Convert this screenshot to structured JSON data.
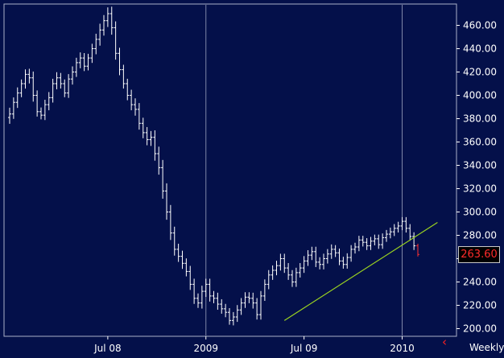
{
  "chart_data": {
    "type": "ohlc",
    "title": "",
    "xlabel": "",
    "ylabel": "",
    "timeframe": "Weekly",
    "last_price_label": "263.60",
    "ylim": [
      195,
      478
    ],
    "yticks": [
      "200.00",
      "220.00",
      "240.00",
      "260.00",
      "280.00",
      "300.00",
      "320.00",
      "340.00",
      "360.00",
      "380.00",
      "400.00",
      "420.00",
      "440.00",
      "460.00"
    ],
    "xticks": [
      {
        "label": "Jul 08",
        "index": 25
      },
      {
        "label": "2009",
        "index": 50
      },
      {
        "label": "Jul 09",
        "index": 75
      },
      {
        "label": "2010",
        "index": 100
      }
    ],
    "year_separators": [
      50,
      100
    ],
    "close": [
      384,
      394,
      402,
      410,
      418,
      415,
      400,
      386,
      383,
      392,
      398,
      410,
      415,
      410,
      402,
      414,
      420,
      428,
      432,
      425,
      432,
      440,
      448,
      456,
      464,
      470,
      458,
      436,
      422,
      410,
      400,
      392,
      388,
      376,
      368,
      362,
      364,
      350,
      338,
      318,
      300,
      282,
      268,
      262,
      256,
      249,
      238,
      226,
      222,
      232,
      238,
      228,
      226,
      221,
      217,
      214,
      207,
      210,
      216,
      222,
      227,
      226,
      222,
      212,
      228,
      238,
      246,
      250,
      254,
      260,
      252,
      246,
      240,
      248,
      252,
      258,
      263,
      266,
      257,
      255,
      260,
      264,
      268,
      265,
      258,
      255,
      261,
      268,
      270,
      276,
      274,
      271,
      275,
      277,
      272,
      278,
      281,
      283,
      286,
      288,
      292,
      286,
      279,
      271,
      263.6
    ],
    "range_half": [
      9,
      7,
      8,
      6,
      7,
      8,
      9,
      7,
      6,
      7,
      8,
      7,
      8,
      7,
      6,
      7,
      8,
      7,
      8,
      7,
      6,
      7,
      8,
      9,
      8,
      9,
      10,
      9,
      8,
      7,
      7,
      8,
      9,
      9,
      8,
      8,
      9,
      10,
      10,
      11,
      11,
      10,
      9,
      8,
      8,
      7,
      8,
      8,
      7,
      8,
      8,
      8,
      7,
      8,
      7,
      7,
      6,
      7,
      7,
      7,
      7,
      7,
      8,
      7,
      7,
      7,
      7,
      7,
      7,
      7,
      7,
      7,
      7,
      7,
      7,
      7,
      7,
      7,
      7,
      7,
      7,
      7,
      7,
      6,
      6,
      6,
      6,
      6,
      6,
      6,
      6,
      6,
      6,
      6,
      6,
      6,
      6,
      6,
      6,
      6,
      6,
      6,
      6,
      6,
      3
    ],
    "trendline": {
      "x": [
        70,
        109
      ],
      "y": [
        207,
        291
      ],
      "color": "#9bd320"
    },
    "colors": {
      "background": "#04104a",
      "bar": "#ffffff",
      "last_bar": "#ff3030",
      "gridline": "#7f86a8",
      "badge_text": "#ff2b2b"
    }
  }
}
